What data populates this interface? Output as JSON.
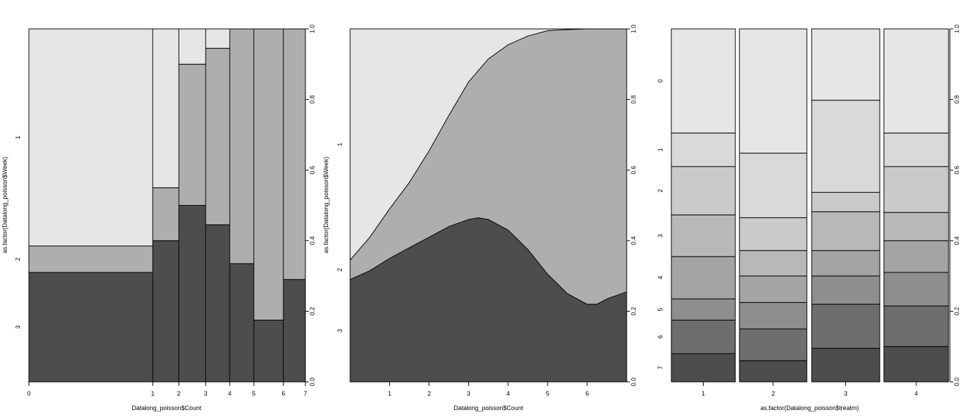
{
  "chart_data": [
    {
      "type": "spineplot",
      "xlabel": "Datalong_poisson$Count",
      "ylabel": "as.factor(Datalong_poisson$Week)",
      "x_breaks": [
        0,
        1,
        2,
        3,
        4,
        5,
        6,
        7
      ],
      "ylim": [
        0,
        1
      ],
      "y_right_ticks": [
        "0.0",
        "0.2",
        "0.4",
        "0.6",
        "0.8",
        "1.0"
      ],
      "levels": [
        "3",
        "2",
        "1"
      ],
      "colors": [
        "#4d4d4d",
        "#aeaeae",
        "#e6e6e6"
      ],
      "bars": [
        {
          "interval": "0-1",
          "cum": [
            0.31,
            0.385
          ]
        },
        {
          "interval": "1-2",
          "cum": [
            0.4,
            0.55
          ]
        },
        {
          "interval": "2-3",
          "cum": [
            0.5,
            0.9
          ]
        },
        {
          "interval": "3-4",
          "cum": [
            0.445,
            0.945
          ]
        },
        {
          "interval": "4-5",
          "cum": [
            0.335,
            1.0
          ]
        },
        {
          "interval": "5-6",
          "cum": [
            0.175,
            1.0
          ]
        },
        {
          "interval": "6-7",
          "cum": [
            0.29,
            1.0
          ]
        }
      ]
    },
    {
      "type": "cdplot",
      "xlabel": "Datalong_poisson$Count",
      "ylabel": "as.factor(Datalong_poisson$Week)",
      "x_ticks": [
        "1",
        "2",
        "3",
        "4",
        "5",
        "6"
      ],
      "xlim": [
        0,
        7
      ],
      "ylim": [
        0,
        1
      ],
      "y_right_ticks": [
        "0.0",
        "0.2",
        "0.4",
        "0.6",
        "0.8",
        "1.0"
      ],
      "levels": [
        "3",
        "2",
        "1"
      ],
      "colors": [
        "#4d4d4d",
        "#aeaeae",
        "#e6e6e6"
      ],
      "series": [
        {
          "name": "3",
          "x": [
            0,
            0.5,
            1,
            1.5,
            2,
            2.5,
            3,
            3.25,
            3.5,
            4,
            4.5,
            5,
            5.5,
            6,
            6.25,
            6.5,
            7
          ],
          "y": [
            0.29,
            0.315,
            0.35,
            0.38,
            0.41,
            0.44,
            0.46,
            0.465,
            0.46,
            0.43,
            0.375,
            0.305,
            0.25,
            0.22,
            0.22,
            0.235,
            0.255
          ]
        },
        {
          "name": "2",
          "x": [
            0,
            0.5,
            1,
            1.5,
            2,
            2.5,
            3,
            3.5,
            4,
            4.5,
            5,
            5.5,
            6,
            6.5,
            7
          ],
          "y": [
            0.345,
            0.41,
            0.49,
            0.565,
            0.655,
            0.755,
            0.85,
            0.915,
            0.955,
            0.98,
            0.995,
            0.998,
            1.0,
            1.0,
            1.0
          ]
        }
      ]
    },
    {
      "type": "spineplot",
      "xlabel": "as.factor(Datalong_poisson$treatm)",
      "categories": [
        "1",
        "2",
        "3",
        "4"
      ],
      "ylim": [
        0,
        1
      ],
      "y_right_ticks": [
        "0.0",
        "0.2",
        "0.4",
        "0.6",
        "0.8",
        "1.0"
      ],
      "levels": [
        "7",
        "6",
        "5",
        "4",
        "3",
        "2",
        "1",
        "0"
      ],
      "colors": [
        "#4d4d4d",
        "#6e6e6e",
        "#8e8e8e",
        "#a4a4a4",
        "#b8b8b8",
        "#cacaca",
        "#d9d9d9",
        "#e6e6e6"
      ],
      "bars": [
        {
          "cum": [
            0.08,
            0.175,
            0.235,
            0.355,
            0.473,
            0.61,
            0.705
          ]
        },
        {
          "cum": [
            0.06,
            0.15,
            0.225,
            0.3,
            0.372,
            0.465,
            0.648
          ]
        },
        {
          "cum": [
            0.095,
            0.22,
            0.3,
            0.372,
            0.482,
            0.537,
            0.798
          ]
        },
        {
          "cum": [
            0.1,
            0.215,
            0.31,
            0.4,
            0.48,
            0.61,
            0.705
          ]
        }
      ]
    }
  ]
}
